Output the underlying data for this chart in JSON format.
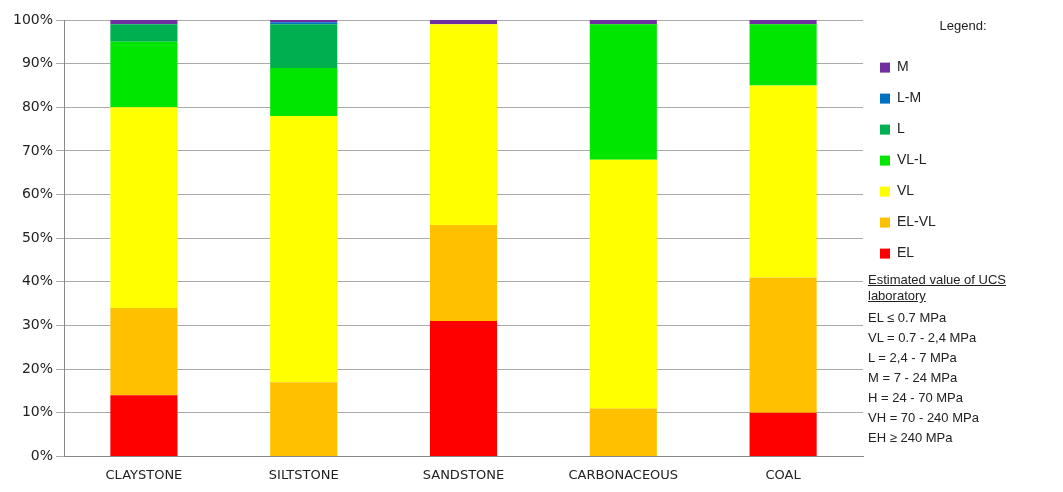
{
  "chart_data": {
    "type": "bar",
    "stacked": true,
    "legend": "right",
    "legend_title": "Legend:",
    "grid": "y",
    "categories": [
      "CLAYSTONE",
      "SILTSTONE",
      "SANDSTONE",
      "CARBONACEOUS",
      "COAL"
    ],
    "series": [
      {
        "name": "EL",
        "color": "#ff0000",
        "values": [
          14,
          0,
          31,
          0,
          10
        ]
      },
      {
        "name": "EL-VL",
        "color": "#ffc000",
        "values": [
          20,
          17,
          22,
          11,
          31
        ]
      },
      {
        "name": "VL",
        "color": "#ffff00",
        "values": [
          46,
          61,
          46,
          57,
          44
        ]
      },
      {
        "name": "VL-L",
        "color": "#00e600",
        "values": [
          15,
          11,
          0,
          31,
          14
        ]
      },
      {
        "name": "L",
        "color": "#00b050",
        "values": [
          4,
          10,
          0,
          0,
          0
        ]
      },
      {
        "name": "L-M",
        "color": "#0070c0",
        "values": [
          0,
          0.5,
          0,
          0,
          0
        ]
      },
      {
        "name": "M",
        "color": "#7030a0",
        "values": [
          1,
          0.5,
          1,
          1,
          1
        ]
      }
    ],
    "ylim": [
      0,
      100
    ],
    "yticks": [
      {
        "value": 0,
        "label": "0%"
      },
      {
        "value": 10,
        "label": "10%"
      },
      {
        "value": 20,
        "label": "20%"
      },
      {
        "value": 30,
        "label": "30%"
      },
      {
        "value": 40,
        "label": "40%"
      },
      {
        "value": 50,
        "label": "50%"
      },
      {
        "value": 60,
        "label": "60%"
      },
      {
        "value": 70,
        "label": "70%"
      },
      {
        "value": 80,
        "label": "80%"
      },
      {
        "value": 90,
        "label": "90%"
      },
      {
        "value": 100,
        "label": "100%"
      }
    ],
    "annotations": [
      "Estimated value of UCS laboratory",
      "EL  ≤ 0.7 MPa",
      "VL  = 0.7 - 2,4 MPa",
      "L    = 2,4 - 7 MPa",
      "M  = 7 - 24 MPa",
      "H    = 24 - 70 MPa",
      "VH = 70 - 240 MPa",
      "EH ≥ 240 MPa"
    ]
  }
}
